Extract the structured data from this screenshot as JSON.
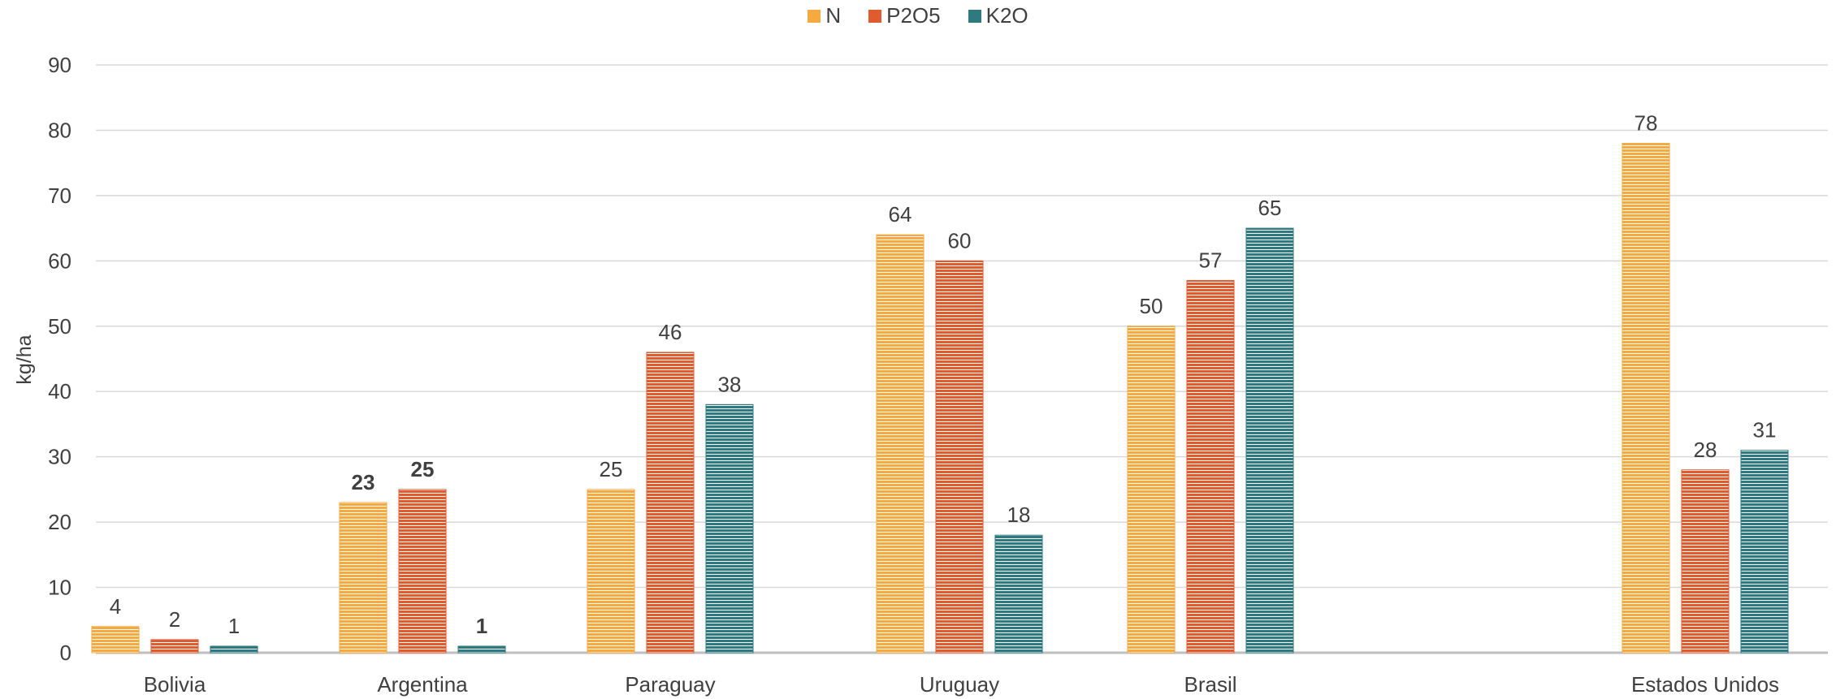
{
  "chart_data": {
    "type": "bar",
    "title": "",
    "xlabel": "",
    "ylabel": "kg/ha",
    "ylim": [
      0,
      90
    ],
    "yticks": [
      0,
      10,
      20,
      30,
      40,
      50,
      60,
      70,
      80,
      90
    ],
    "grid": true,
    "legend_position": "top-center",
    "categories": [
      "Bolivia",
      "Argentina",
      "Paraguay",
      "Uruguay",
      "Brasil",
      "Estados Unidos"
    ],
    "series": [
      {
        "name": "N",
        "color": "#F5A93E",
        "values": [
          4,
          23,
          25,
          64,
          50,
          78
        ]
      },
      {
        "name": "P2O5",
        "color": "#E05B2D",
        "values": [
          2,
          25,
          46,
          60,
          57,
          28
        ]
      },
      {
        "name": "K2O",
        "color": "#2E7A80",
        "values": [
          1,
          1,
          38,
          18,
          65,
          31
        ]
      }
    ],
    "data_labels": [
      [
        "4",
        "23",
        "25",
        "64",
        "50",
        "78"
      ],
      [
        "2",
        "25",
        "46",
        "60",
        "57",
        "28"
      ],
      [
        "1",
        "1",
        "38",
        "18",
        "65",
        "31"
      ]
    ],
    "bold_labels": [
      "Argentina"
    ]
  }
}
